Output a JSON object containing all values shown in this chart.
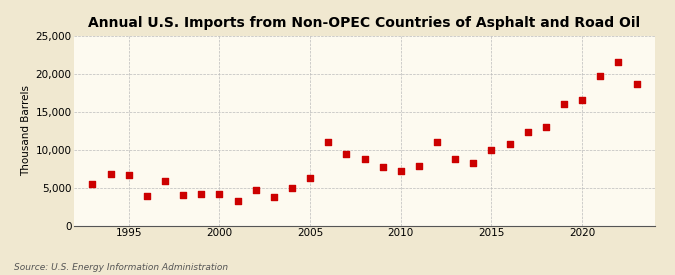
{
  "title": "Annual U.S. Imports from Non-OPEC Countries of Asphalt and Road Oil",
  "ylabel": "Thousand Barrels",
  "source": "Source: U.S. Energy Information Administration",
  "background_color": "#f0e8d0",
  "plot_background_color": "#fdfaf0",
  "marker_color": "#cc0000",
  "years": [
    1993,
    1994,
    1995,
    1996,
    1997,
    1998,
    1999,
    2000,
    2001,
    2002,
    2003,
    2004,
    2005,
    2006,
    2007,
    2008,
    2009,
    2010,
    2011,
    2012,
    2013,
    2014,
    2015,
    2016,
    2017,
    2018,
    2019,
    2020,
    2021,
    2022,
    2023
  ],
  "values": [
    5500,
    6800,
    6700,
    3900,
    5900,
    4000,
    4100,
    4200,
    3200,
    4700,
    3700,
    5000,
    6300,
    11000,
    9400,
    8700,
    7700,
    7200,
    7800,
    11000,
    8700,
    8300,
    9900,
    10700,
    12300,
    13000,
    16000,
    16500,
    19700,
    21500,
    18700
  ],
  "ylim": [
    0,
    25000
  ],
  "yticks": [
    0,
    5000,
    10000,
    15000,
    20000,
    25000
  ],
  "xticks": [
    1995,
    2000,
    2005,
    2010,
    2015,
    2020
  ],
  "xlim": [
    1992,
    2024
  ],
  "grid_color": "#bbbbbb",
  "title_fontsize": 10,
  "label_fontsize": 7.5,
  "tick_fontsize": 7.5,
  "source_fontsize": 6.5
}
